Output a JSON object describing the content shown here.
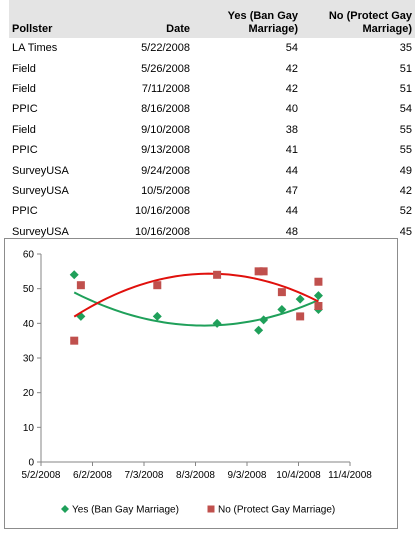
{
  "table": {
    "headers": {
      "pollster": "Pollster",
      "date": "Date",
      "yes": "Yes (Ban Gay Marriage)",
      "no": "No (Protect Gay Marriage)"
    },
    "rows": [
      {
        "pollster": "LA Times",
        "date": "5/22/2008",
        "yes": "54",
        "no": "35"
      },
      {
        "pollster": "Field",
        "date": "5/26/2008",
        "yes": "42",
        "no": "51"
      },
      {
        "pollster": "Field",
        "date": "7/11/2008",
        "yes": "42",
        "no": "51"
      },
      {
        "pollster": "PPIC",
        "date": "8/16/2008",
        "yes": "40",
        "no": "54"
      },
      {
        "pollster": "Field",
        "date": "9/10/2008",
        "yes": "38",
        "no": "55"
      },
      {
        "pollster": "PPIC",
        "date": "9/13/2008",
        "yes": "41",
        "no": "55"
      },
      {
        "pollster": "SurveyUSA",
        "date": "9/24/2008",
        "yes": "44",
        "no": "49"
      },
      {
        "pollster": "SurveyUSA",
        "date": "10/5/2008",
        "yes": "47",
        "no": "42"
      },
      {
        "pollster": "PPIC",
        "date": "10/16/2008",
        "yes": "44",
        "no": "52"
      },
      {
        "pollster": "SurveyUSA",
        "date": "10/16/2008",
        "yes": "48",
        "no": "45"
      }
    ]
  },
  "chart_data": {
    "type": "scatter",
    "x_tick_labels": [
      "5/2/2008",
      "6/2/2008",
      "7/3/2008",
      "8/3/2008",
      "9/3/2008",
      "10/4/2008",
      "11/4/2008"
    ],
    "y_tick_labels": [
      "0",
      "10",
      "20",
      "30",
      "40",
      "50",
      "60"
    ],
    "xlim": [
      "2008-05-02",
      "2008-11-04"
    ],
    "ylim": [
      0,
      60
    ],
    "grid": false,
    "legend_position": "bottom",
    "series": [
      {
        "name": "Yes (Ban Gay Marriage)",
        "color": "#1fa05a",
        "marker": "diamond",
        "trendline": "polynomial",
        "points": [
          {
            "x": "2008-05-22",
            "y": 54
          },
          {
            "x": "2008-05-26",
            "y": 42
          },
          {
            "x": "2008-07-11",
            "y": 42
          },
          {
            "x": "2008-08-16",
            "y": 40
          },
          {
            "x": "2008-09-10",
            "y": 38
          },
          {
            "x": "2008-09-13",
            "y": 41
          },
          {
            "x": "2008-09-24",
            "y": 44
          },
          {
            "x": "2008-10-05",
            "y": 47
          },
          {
            "x": "2008-10-16",
            "y": 44
          },
          {
            "x": "2008-10-16",
            "y": 48
          }
        ]
      },
      {
        "name": "No (Protect Gay Marriage)",
        "color": "#c0504d",
        "marker": "square",
        "trendline": "polynomial",
        "trendline_color": "#e0100c",
        "points": [
          {
            "x": "2008-05-22",
            "y": 35
          },
          {
            "x": "2008-05-26",
            "y": 51
          },
          {
            "x": "2008-07-11",
            "y": 51
          },
          {
            "x": "2008-08-16",
            "y": 54
          },
          {
            "x": "2008-09-10",
            "y": 55
          },
          {
            "x": "2008-09-13",
            "y": 55
          },
          {
            "x": "2008-09-24",
            "y": 49
          },
          {
            "x": "2008-10-05",
            "y": 42
          },
          {
            "x": "2008-10-16",
            "y": 52
          },
          {
            "x": "2008-10-16",
            "y": 45
          }
        ]
      }
    ]
  }
}
